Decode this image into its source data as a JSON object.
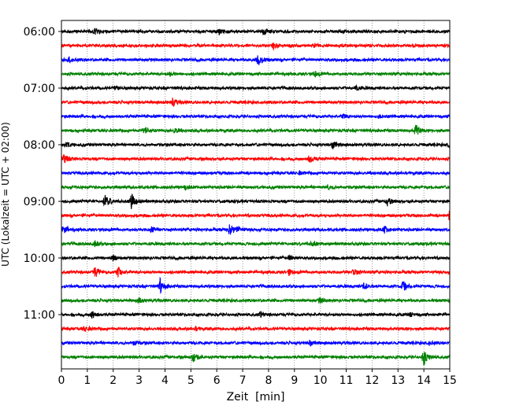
{
  "chart_data": {
    "type": "line",
    "title": "",
    "xlabel": "Zeit  [min]",
    "ylabel": "UTC (Lokalzeit = UTC + 02:00)",
    "xlim": [
      0,
      15
    ],
    "x_ticks": [
      "0",
      "1",
      "2",
      "3",
      "4",
      "5",
      "6",
      "7",
      "8",
      "9",
      "10",
      "11",
      "12",
      "13",
      "14",
      "15"
    ],
    "y_ticks": [
      "06:00",
      "07:00",
      "08:00",
      "09:00",
      "10:00",
      "11:00"
    ],
    "row_interval_minutes": 15,
    "start_time": "06:00",
    "end_time": "11:45",
    "row_colors": [
      "#000000",
      "#ff0000",
      "#0000ff",
      "#008000"
    ],
    "grid": "vertical dotted at each minute",
    "series": [
      {
        "time": "06:00",
        "events": [
          [
            1.3,
            0.4
          ],
          [
            6.1,
            0.3
          ],
          [
            7.8,
            0.3
          ]
        ]
      },
      {
        "time": "06:15",
        "events": [
          [
            8.2,
            0.35
          ],
          [
            9.8,
            0.2
          ]
        ]
      },
      {
        "time": "06:30",
        "events": [
          [
            0.3,
            0.3
          ],
          [
            7.6,
            0.9
          ]
        ]
      },
      {
        "time": "06:45",
        "events": [
          [
            4.2,
            0.2
          ],
          [
            9.8,
            0.25
          ]
        ]
      },
      {
        "time": "07:00",
        "events": [
          [
            2.1,
            0.2
          ],
          [
            11.4,
            0.25
          ]
        ]
      },
      {
        "time": "07:15",
        "events": [
          [
            4.3,
            0.55
          ]
        ]
      },
      {
        "time": "07:30",
        "events": [
          [
            10.9,
            0.3
          ],
          [
            12.3,
            0.2
          ]
        ]
      },
      {
        "time": "07:45",
        "events": [
          [
            3.2,
            0.45
          ],
          [
            4.4,
            0.3
          ],
          [
            13.7,
            0.7
          ]
        ]
      },
      {
        "time": "08:00",
        "events": [
          [
            0.2,
            0.35
          ],
          [
            10.5,
            0.45
          ],
          [
            15.0,
            0.4
          ]
        ]
      },
      {
        "time": "08:15",
        "events": [
          [
            0.1,
            0.55
          ],
          [
            9.6,
            0.5
          ]
        ]
      },
      {
        "time": "08:30",
        "events": [
          [
            9.2,
            0.15
          ]
        ]
      },
      {
        "time": "08:45",
        "events": [
          [
            4.8,
            0.2
          ],
          [
            10.3,
            0.2
          ]
        ]
      },
      {
        "time": "09:00",
        "events": [
          [
            1.7,
            0.85
          ],
          [
            2.7,
            1.0
          ],
          [
            12.6,
            0.55
          ]
        ]
      },
      {
        "time": "09:15",
        "events": [
          [
            15.0,
            0.55
          ]
        ]
      },
      {
        "time": "09:30",
        "events": [
          [
            0.1,
            0.55
          ],
          [
            3.5,
            0.35
          ],
          [
            6.5,
            0.75
          ],
          [
            6.8,
            0.4
          ],
          [
            12.5,
            0.45
          ]
        ]
      },
      {
        "time": "09:45",
        "events": [
          [
            1.3,
            0.3
          ],
          [
            9.7,
            0.35
          ]
        ]
      },
      {
        "time": "10:00",
        "events": [
          [
            2.0,
            0.3
          ],
          [
            8.8,
            0.25
          ]
        ]
      },
      {
        "time": "10:15",
        "events": [
          [
            1.3,
            0.65
          ],
          [
            2.2,
            0.65
          ],
          [
            8.8,
            0.3
          ],
          [
            11.3,
            0.4
          ]
        ]
      },
      {
        "time": "10:30",
        "events": [
          [
            3.8,
            1.0
          ],
          [
            11.7,
            0.45
          ],
          [
            13.2,
            0.65
          ]
        ]
      },
      {
        "time": "10:45",
        "events": [
          [
            3.0,
            0.3
          ],
          [
            10.0,
            0.3
          ]
        ]
      },
      {
        "time": "11:00",
        "events": [
          [
            1.2,
            0.4
          ],
          [
            7.7,
            0.3
          ],
          [
            13.5,
            0.2
          ]
        ]
      },
      {
        "time": "11:15",
        "events": [
          [
            0.9,
            0.3
          ],
          [
            5.2,
            0.2
          ]
        ]
      },
      {
        "time": "11:30",
        "events": [
          [
            2.8,
            0.25
          ],
          [
            9.6,
            0.3
          ],
          [
            14.2,
            0.2
          ]
        ]
      },
      {
        "time": "11:45",
        "events": [
          [
            5.1,
            0.7
          ],
          [
            14.0,
            1.0
          ]
        ]
      }
    ]
  }
}
